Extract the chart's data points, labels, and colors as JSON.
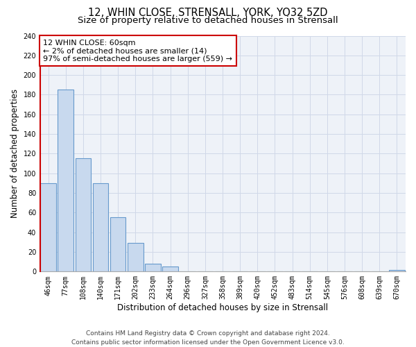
{
  "title": "12, WHIN CLOSE, STRENSALL, YORK, YO32 5ZD",
  "subtitle": "Size of property relative to detached houses in Strensall",
  "xlabel": "Distribution of detached houses by size in Strensall",
  "ylabel": "Number of detached properties",
  "bar_labels": [
    "46sqm",
    "77sqm",
    "108sqm",
    "140sqm",
    "171sqm",
    "202sqm",
    "233sqm",
    "264sqm",
    "296sqm",
    "327sqm",
    "358sqm",
    "389sqm",
    "420sqm",
    "452sqm",
    "483sqm",
    "514sqm",
    "545sqm",
    "576sqm",
    "608sqm",
    "639sqm",
    "670sqm"
  ],
  "bar_values": [
    90,
    185,
    115,
    90,
    55,
    29,
    8,
    5,
    0,
    0,
    0,
    0,
    0,
    0,
    0,
    0,
    0,
    0,
    0,
    0,
    2
  ],
  "bar_fill_color": "#c8d9ee",
  "bar_edge_color": "#6699cc",
  "highlight_color": "#cc0000",
  "highlight_bar_index": 0,
  "ylim": [
    0,
    240
  ],
  "yticks": [
    0,
    20,
    40,
    60,
    80,
    100,
    120,
    140,
    160,
    180,
    200,
    220,
    240
  ],
  "annotation_title": "12 WHIN CLOSE: 60sqm",
  "annotation_line1": "← 2% of detached houses are smaller (14)",
  "annotation_line2": "97% of semi-detached houses are larger (559) →",
  "footer_line1": "Contains HM Land Registry data © Crown copyright and database right 2024.",
  "footer_line2": "Contains public sector information licensed under the Open Government Licence v3.0.",
  "grid_color": "#d0d8e8",
  "axes_bg_color": "#eef2f8",
  "background_color": "#ffffff",
  "title_fontsize": 10.5,
  "subtitle_fontsize": 9.5,
  "axis_label_fontsize": 8.5,
  "tick_fontsize": 7,
  "annotation_fontsize": 8,
  "footer_fontsize": 6.5
}
